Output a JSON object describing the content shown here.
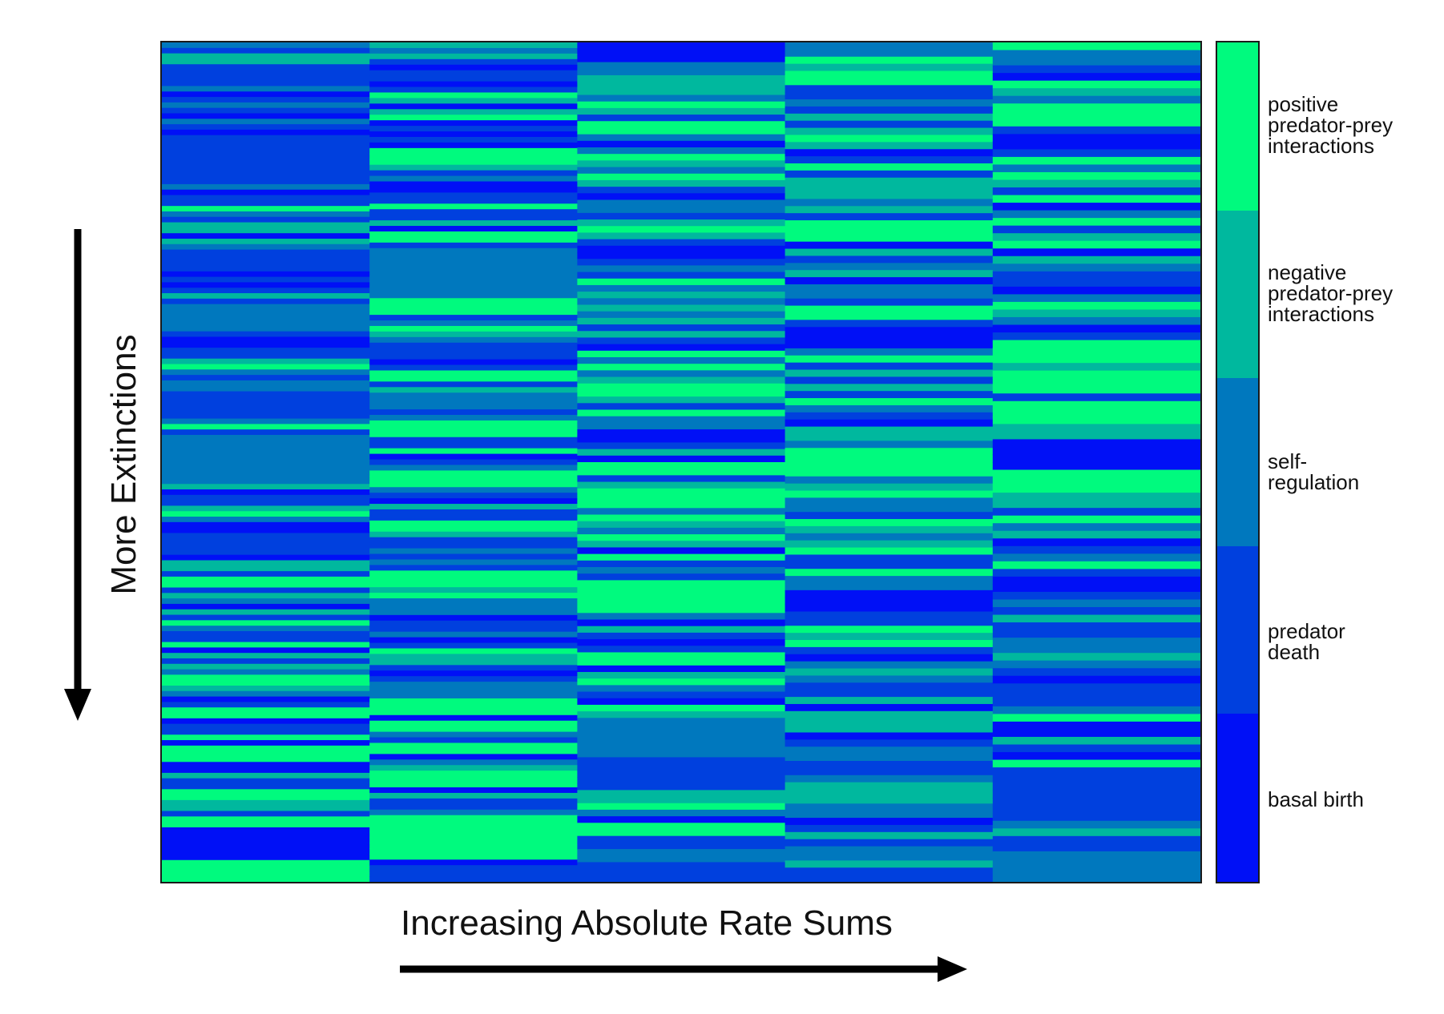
{
  "chart_data": {
    "type": "heatmap",
    "title": "",
    "xlabel": "Increasing Absolute Rate Sums",
    "ylabel": "More Extinctions",
    "colorbar": {
      "categories": [
        "basal birth",
        "predator death",
        "self-regulation",
        "negative predator-prey interactions",
        "positive predator-prey interactions"
      ],
      "display_labels": [
        "basal birth",
        "predator\ndeath",
        "self-\nregulation",
        "negative\npredator-prey\ninteractions",
        "positive\npredator-prey\ninteractions"
      ],
      "colors": [
        "#0010f6",
        "#0040de",
        "#0078be",
        "#00b89e",
        "#00fa7e"
      ]
    },
    "columns": [
      [
        2,
        1,
        3,
        3,
        1,
        1,
        1,
        1,
        2,
        0,
        1,
        2,
        1,
        0,
        2,
        1,
        0,
        1,
        1,
        1,
        1,
        1,
        1,
        1,
        1,
        1,
        2,
        0,
        1,
        1,
        4,
        2,
        1,
        3,
        3,
        0,
        3,
        2,
        1,
        1,
        1,
        1,
        0,
        1,
        0,
        1,
        3,
        1,
        2,
        2,
        2,
        2,
        2,
        1,
        0,
        0,
        1,
        1,
        3,
        4,
        2,
        1,
        2,
        2,
        1,
        1,
        1,
        1,
        1,
        2,
        4,
        1,
        2,
        2,
        2,
        2,
        2,
        2,
        2,
        2,
        2,
        3,
        0,
        1,
        1,
        3,
        4,
        2,
        0,
        0,
        1,
        1,
        1,
        1,
        0,
        3,
        3,
        1,
        4,
        4,
        1,
        3,
        2,
        0,
        3,
        1,
        4,
        2,
        1,
        1,
        4,
        0,
        3,
        1,
        3,
        2,
        4,
        4,
        3,
        2,
        0,
        1,
        4,
        4,
        0,
        1,
        1,
        4,
        0,
        4,
        4,
        4,
        0,
        0,
        3,
        1,
        1,
        4,
        4,
        3,
        3,
        1,
        4,
        4,
        0,
        0,
        0,
        0,
        0,
        0,
        4,
        4,
        4,
        4
      ],
      [
        3,
        2,
        3,
        1,
        0,
        1,
        1,
        0,
        1,
        4,
        3,
        0,
        3,
        4,
        0,
        1,
        0,
        1,
        0,
        4,
        4,
        4,
        3,
        1,
        2,
        0,
        0,
        1,
        1,
        4,
        1,
        1,
        3,
        0,
        4,
        4,
        1,
        2,
        2,
        2,
        2,
        2,
        2,
        2,
        2,
        2,
        4,
        4,
        4,
        1,
        2,
        4,
        3,
        2,
        1,
        1,
        1,
        0,
        1,
        4,
        4,
        1,
        3,
        2,
        2,
        2,
        1,
        2,
        4,
        4,
        4,
        1,
        1,
        4,
        0,
        1,
        2,
        4,
        4,
        4,
        2,
        1,
        0,
        3,
        1,
        1,
        4,
        4,
        3,
        1,
        1,
        2,
        1,
        2,
        1,
        4,
        4,
        4,
        3,
        4,
        2,
        2,
        2,
        0,
        1,
        1,
        2,
        0,
        1,
        4,
        3,
        3,
        1,
        0,
        1,
        2,
        2,
        2,
        4,
        4,
        4,
        0,
        4,
        4,
        2,
        1,
        4,
        4,
        0,
        2,
        3,
        4,
        4,
        4,
        0,
        3,
        1,
        1,
        2,
        4,
        4,
        4,
        4,
        4,
        4,
        4,
        4,
        0,
        1,
        1,
        1
      ],
      [
        0,
        0,
        0,
        2,
        2,
        3,
        3,
        3,
        2,
        4,
        3,
        1,
        4,
        4,
        2,
        0,
        2,
        4,
        3,
        2,
        4,
        3,
        1,
        0,
        2,
        2,
        1,
        3,
        4,
        3,
        1,
        0,
        0,
        1,
        2,
        1,
        4,
        2,
        3,
        2,
        3,
        2,
        3,
        1,
        3,
        1,
        0,
        4,
        2,
        4,
        2,
        3,
        4,
        4,
        3,
        1,
        4,
        2,
        2,
        0,
        0,
        1,
        3,
        0,
        4,
        4,
        1,
        3,
        4,
        4,
        4,
        2,
        4,
        3,
        2,
        4,
        3,
        0,
        4,
        1,
        2,
        1,
        4,
        4,
        4,
        4,
        4,
        2,
        0,
        3,
        1,
        0,
        1,
        4,
        4,
        0,
        3,
        4,
        2,
        1,
        0,
        4,
        3,
        2,
        2,
        2,
        2,
        2,
        2,
        1,
        1,
        1,
        1,
        1,
        3,
        3,
        4,
        2,
        0,
        4,
        4,
        1,
        1,
        2,
        2,
        1,
        1,
        1
      ],
      [
        2,
        2,
        4,
        3,
        4,
        4,
        1,
        1,
        2,
        1,
        3,
        1,
        3,
        4,
        3,
        0,
        1,
        4,
        1,
        3,
        3,
        3,
        2,
        3,
        1,
        4,
        4,
        4,
        0,
        3,
        1,
        2,
        3,
        0,
        2,
        2,
        1,
        4,
        4,
        1,
        0,
        0,
        0,
        2,
        4,
        1,
        3,
        1,
        3,
        1,
        4,
        2,
        1,
        0,
        3,
        3,
        2,
        4,
        4,
        4,
        4,
        2,
        3,
        4,
        2,
        2,
        1,
        4,
        3,
        2,
        3,
        4,
        1,
        1,
        4,
        2,
        2,
        0,
        0,
        0,
        1,
        1,
        4,
        3,
        4,
        1,
        0,
        2,
        3,
        2,
        1,
        1,
        3,
        0,
        3,
        3,
        3,
        0,
        1,
        2,
        2,
        1,
        1,
        2,
        3,
        3,
        3,
        2,
        2,
        0,
        1,
        3,
        1,
        2,
        2,
        3,
        1,
        1
      ],
      [
        4,
        2,
        2,
        1,
        0,
        4,
        3,
        2,
        4,
        4,
        4,
        1,
        0,
        0,
        1,
        4,
        2,
        4,
        3,
        1,
        4,
        0,
        2,
        4,
        1,
        3,
        4,
        0,
        3,
        2,
        1,
        1,
        0,
        2,
        4,
        3,
        2,
        0,
        1,
        4,
        4,
        4,
        3,
        4,
        4,
        4,
        1,
        4,
        4,
        4,
        3,
        3,
        0,
        0,
        0,
        0,
        4,
        4,
        4,
        3,
        3,
        1,
        4,
        2,
        3,
        0,
        1,
        2,
        4,
        1,
        0,
        0,
        1,
        2,
        1,
        3,
        1,
        1,
        2,
        2,
        3,
        2,
        1,
        0,
        1,
        1,
        1,
        2,
        4,
        0,
        0,
        3,
        1,
        0,
        4,
        1,
        1,
        1,
        1,
        1,
        1,
        1,
        2,
        3,
        1,
        1,
        2,
        2,
        2,
        2
      ]
    ]
  },
  "colorbar_labels": {
    "l4": "positive\npredator-prey\ninteractions",
    "l3": "negative\npredator-prey\ninteractions",
    "l2": "self-\nregulation",
    "l1": "predator\ndeath",
    "l0": "basal birth"
  }
}
